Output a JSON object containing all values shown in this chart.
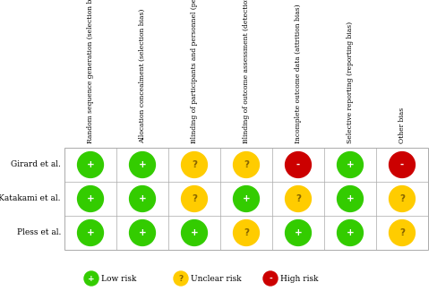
{
  "columns": [
    "Random sequence generation (selection bias)",
    "Allocation concealment (selection bias)",
    "Blinding of participants and personnel (performance bias)",
    "Blinding of outcome assessment (detection bias)",
    "Incomplete outcome data (attrition bias)",
    "Selective reporting (reporting bias)",
    "Other bias"
  ],
  "rows": [
    "Girard et al.",
    "Katakami et al.",
    "Pless et al."
  ],
  "grid": [
    [
      "low",
      "low",
      "unclear",
      "unclear",
      "high",
      "low",
      "high"
    ],
    [
      "low",
      "low",
      "unclear",
      "low",
      "unclear",
      "low",
      "unclear"
    ],
    [
      "low",
      "low",
      "low",
      "unclear",
      "low",
      "low",
      "unclear"
    ]
  ],
  "low_color": "#33cc00",
  "unclear_color": "#ffcc00",
  "high_color": "#cc0000",
  "low_text": "+",
  "unclear_text": "?",
  "high_text": "-",
  "background": "#ffffff",
  "border_color": "#aaaaaa",
  "font_size_col": 5.5,
  "font_size_row": 6.5,
  "font_size_symbol": 7.5,
  "font_size_legend": 6.5,
  "figsize": [
    4.88,
    3.25
  ],
  "dpi": 100
}
